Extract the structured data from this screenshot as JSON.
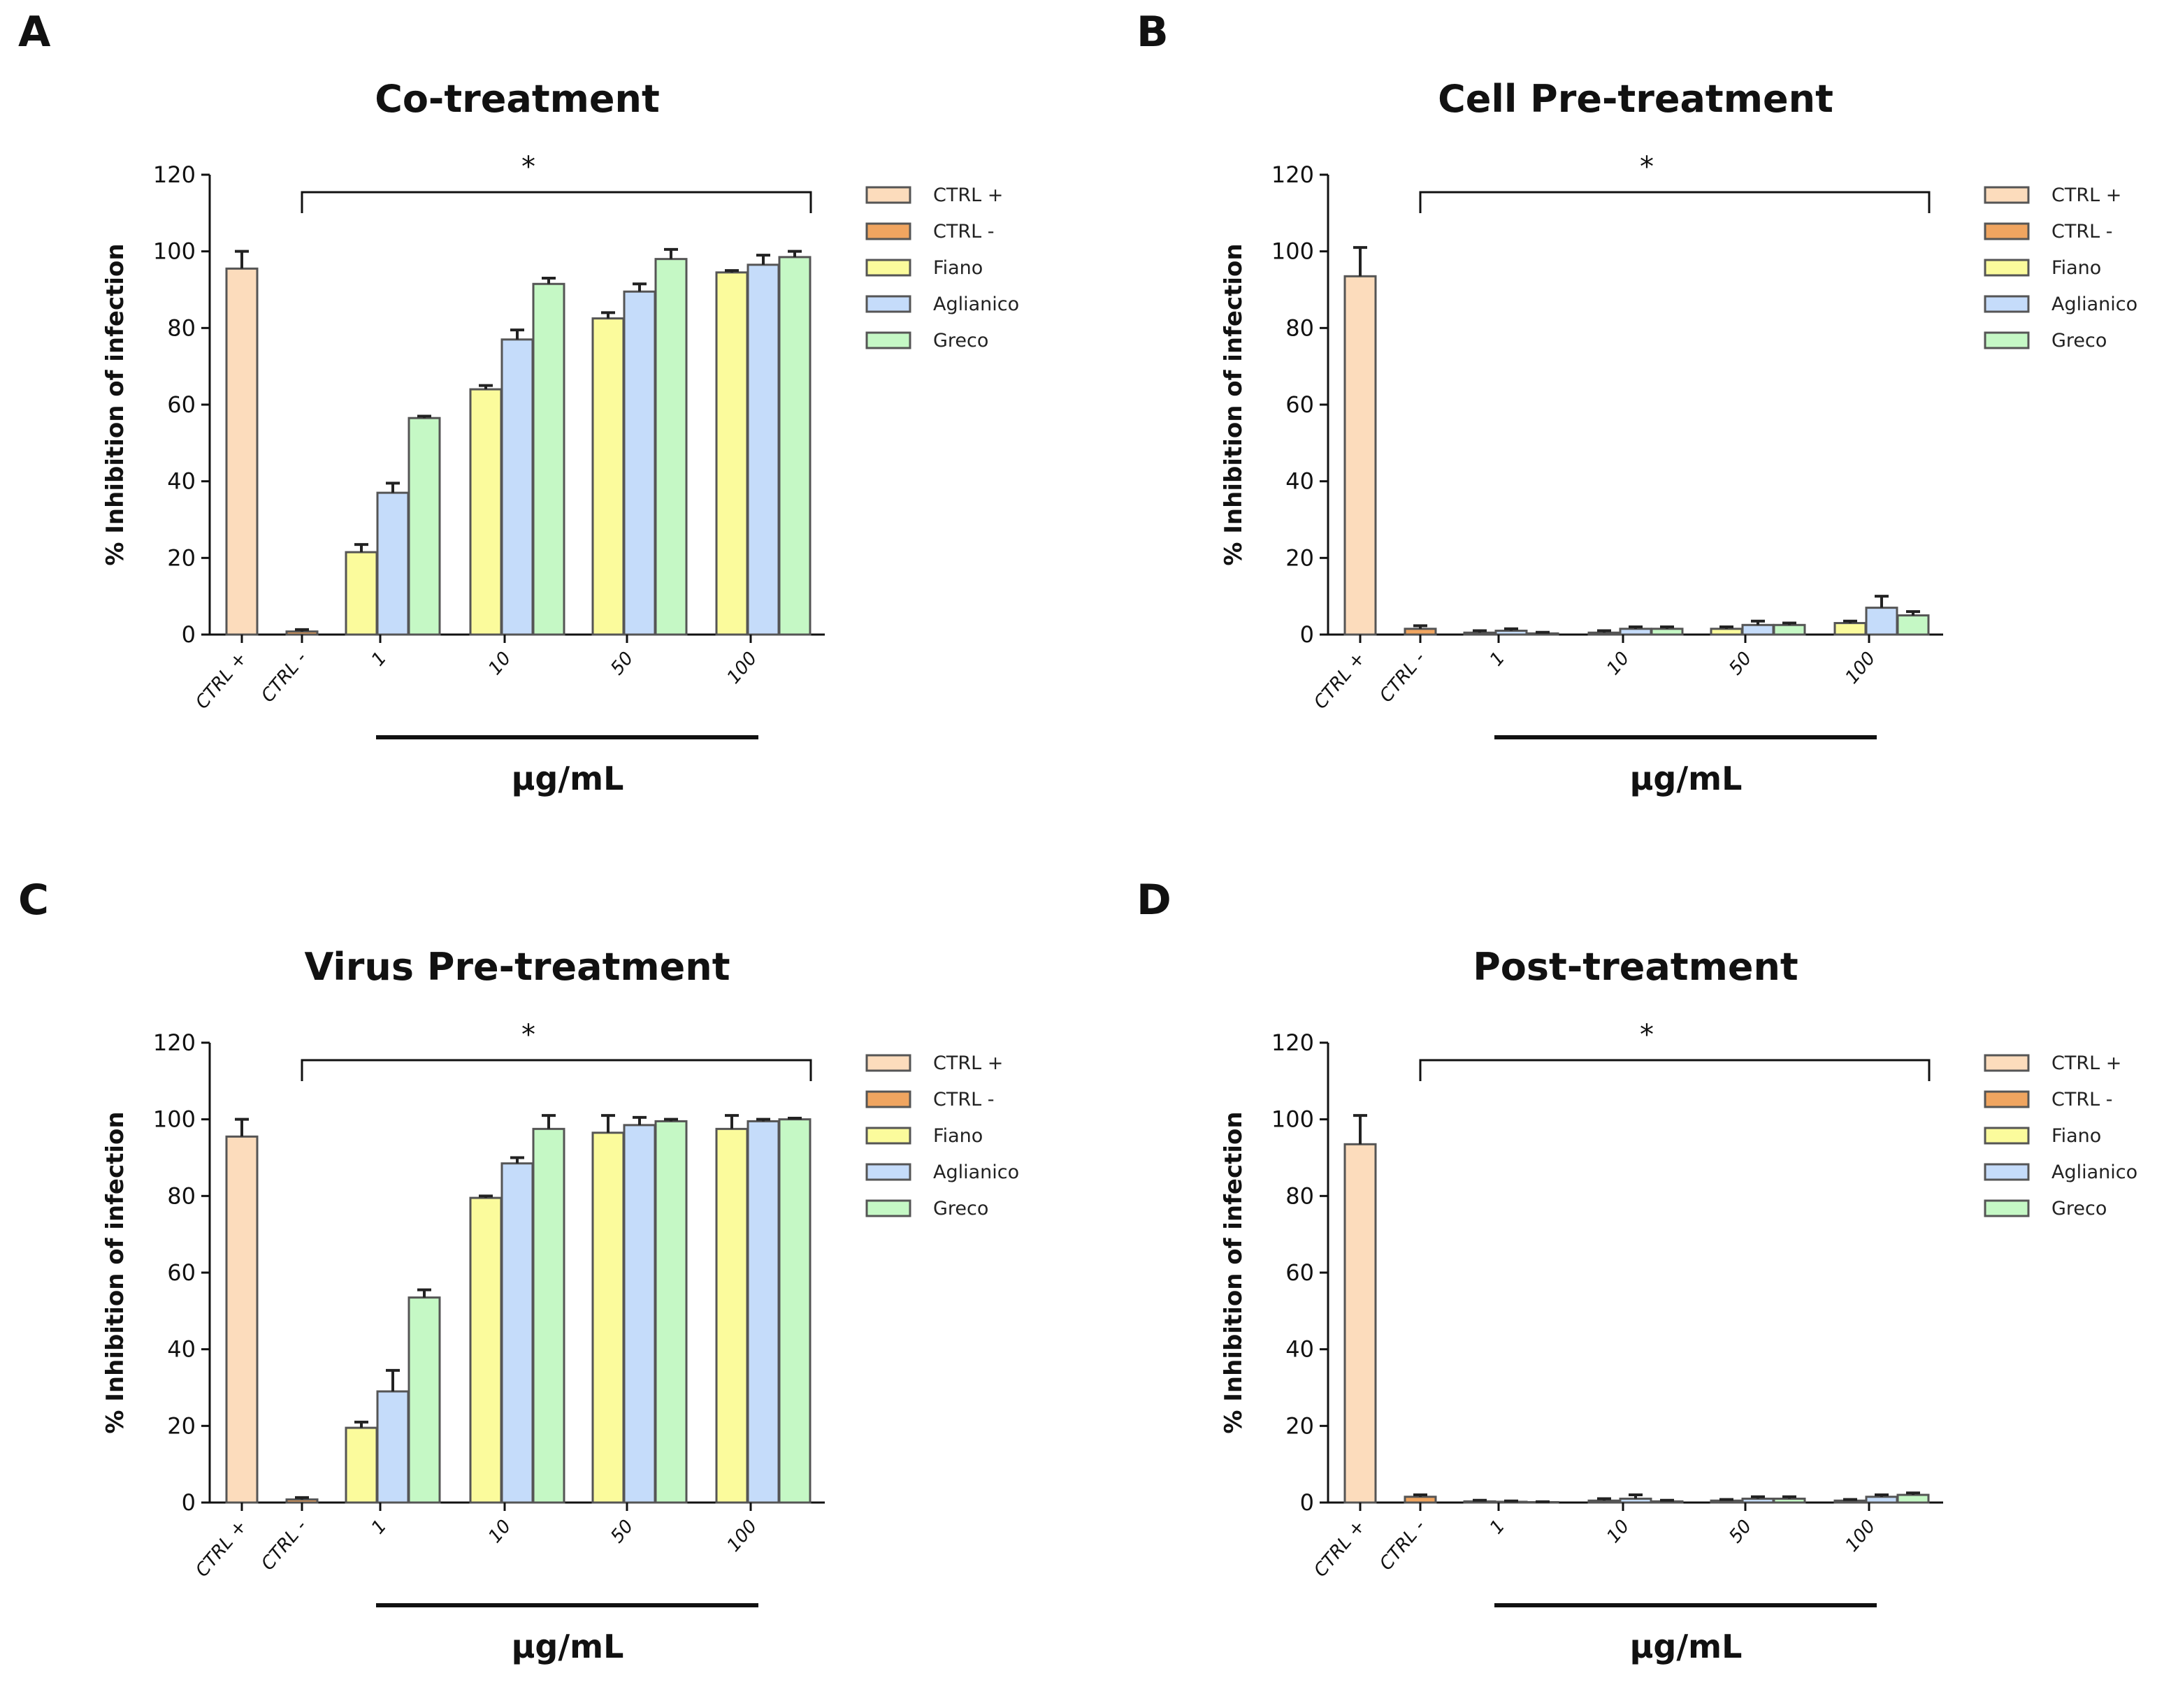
{
  "figure": {
    "legend_entries": [
      "CTRL +",
      "CTRL -",
      "Fiano",
      "Aglianico",
      "Greco"
    ],
    "colors": {
      "ctrl_pos": "#fcdcbc",
      "ctrl_neg": "#f0a560",
      "fiano": "#fbfb9c",
      "aglianico": "#c5dcfa",
      "greco": "#c5f8c5",
      "bar_edge": "#555555",
      "axis": "#111111"
    }
  },
  "chart_data": [
    {
      "panel": "A",
      "type": "bar",
      "title": "Co-treatment",
      "ylabel": "% Inhibition of infection",
      "xlabel": "μg/mL",
      "ylim": [
        0,
        120
      ],
      "yticks": [
        0,
        20,
        40,
        60,
        80,
        100,
        120
      ],
      "significance": "*",
      "controls": {
        "labels": [
          "CTRL +",
          "CTRL -"
        ],
        "values": [
          95.5,
          0.8
        ],
        "errors": [
          4.5,
          0.5
        ]
      },
      "categories": [
        "1",
        "10",
        "50",
        "100"
      ],
      "series": [
        {
          "name": "Fiano",
          "values": [
            21.5,
            64,
            82.5,
            94.5
          ],
          "errors": [
            2,
            1,
            1.5,
            0.5
          ]
        },
        {
          "name": "Aglianico",
          "values": [
            37,
            77,
            89.5,
            96.5
          ],
          "errors": [
            2.5,
            2.5,
            2,
            2.5
          ]
        },
        {
          "name": "Greco",
          "values": [
            56.5,
            91.5,
            98,
            98.5
          ],
          "errors": [
            0.5,
            1.5,
            2.5,
            1.5
          ]
        }
      ]
    },
    {
      "panel": "B",
      "type": "bar",
      "title": "Cell Pre-treatment",
      "ylabel": "% Inhibition of infection",
      "xlabel": "μg/mL",
      "ylim": [
        0,
        120
      ],
      "yticks": [
        0,
        20,
        40,
        60,
        80,
        100,
        120
      ],
      "significance": "*",
      "controls": {
        "labels": [
          "CTRL +",
          "CTRL -"
        ],
        "values": [
          93.5,
          1.5
        ],
        "errors": [
          7.5,
          0.8
        ]
      },
      "categories": [
        "1",
        "10",
        "50",
        "100"
      ],
      "series": [
        {
          "name": "Fiano",
          "values": [
            0.5,
            0.5,
            1.5,
            3
          ],
          "errors": [
            0.5,
            0.5,
            0.5,
            0.5
          ]
        },
        {
          "name": "Aglianico",
          "values": [
            1,
            1.5,
            2.5,
            7
          ],
          "errors": [
            0.5,
            0.5,
            1,
            3
          ]
        },
        {
          "name": "Greco",
          "values": [
            0.3,
            1.5,
            2.5,
            5
          ],
          "errors": [
            0.3,
            0.5,
            0.5,
            1
          ]
        }
      ]
    },
    {
      "panel": "C",
      "type": "bar",
      "title": "Virus Pre-treatment",
      "ylabel": "% Inhibition of infection",
      "xlabel": "μg/mL",
      "ylim": [
        0,
        120
      ],
      "yticks": [
        0,
        20,
        40,
        60,
        80,
        100,
        120
      ],
      "significance": "*",
      "controls": {
        "labels": [
          "CTRL +",
          "CTRL -"
        ],
        "values": [
          95.5,
          0.8
        ],
        "errors": [
          4.5,
          0.5
        ]
      },
      "categories": [
        "1",
        "10",
        "50",
        "100"
      ],
      "series": [
        {
          "name": "Fiano",
          "values": [
            19.5,
            79.5,
            96.5,
            97.5
          ],
          "errors": [
            1.5,
            0.5,
            4.5,
            3.5
          ]
        },
        {
          "name": "Aglianico",
          "values": [
            29,
            88.5,
            98.5,
            99.5
          ],
          "errors": [
            5.5,
            1.5,
            2,
            0.5
          ]
        },
        {
          "name": "Greco",
          "values": [
            53.5,
            97.5,
            99.5,
            100
          ],
          "errors": [
            2,
            3.5,
            0.5,
            0.3
          ]
        }
      ]
    },
    {
      "panel": "D",
      "type": "bar",
      "title": "Post-treatment",
      "ylabel": "% Inhibition of infection",
      "xlabel": "μg/mL",
      "ylim": [
        0,
        120
      ],
      "yticks": [
        0,
        20,
        40,
        60,
        80,
        100,
        120
      ],
      "significance": "*",
      "controls": {
        "labels": [
          "CTRL +",
          "CTRL -"
        ],
        "values": [
          93.5,
          1.5
        ],
        "errors": [
          7.5,
          0.5
        ]
      },
      "categories": [
        "1",
        "10",
        "50",
        "100"
      ],
      "series": [
        {
          "name": "Fiano",
          "values": [
            0.3,
            0.5,
            0.5,
            0.5
          ],
          "errors": [
            0.3,
            0.5,
            0.3,
            0.3
          ]
        },
        {
          "name": "Aglianico",
          "values": [
            0.2,
            1,
            1,
            1.5
          ],
          "errors": [
            0.2,
            1,
            0.5,
            0.5
          ]
        },
        {
          "name": "Greco",
          "values": [
            0.1,
            0.3,
            1,
            2
          ],
          "errors": [
            0.1,
            0.3,
            0.5,
            0.5
          ]
        }
      ]
    }
  ]
}
